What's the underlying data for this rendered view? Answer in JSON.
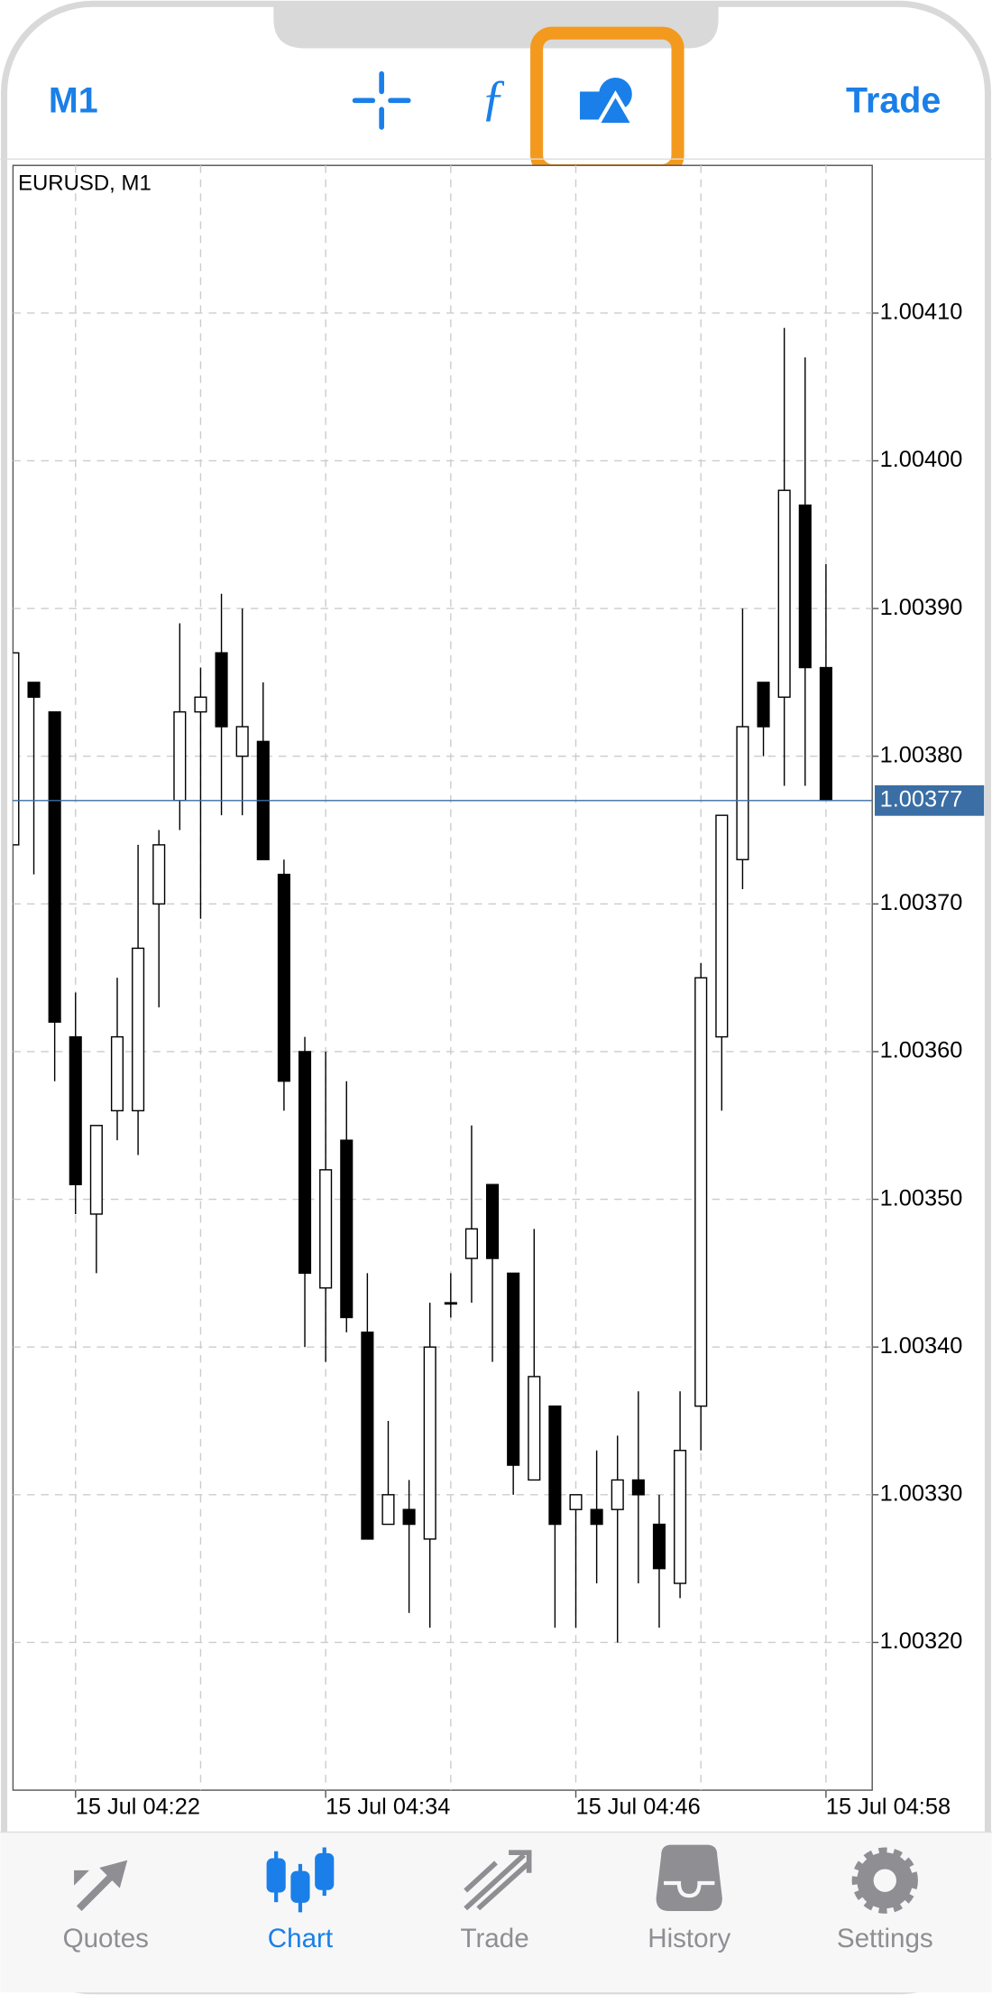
{
  "header": {
    "left": "M1",
    "right": "Trade"
  },
  "chart_data": {
    "type": "candlestick",
    "title": "EURUSD, M1",
    "x": [
      "15 Jul 04:19",
      "15 Jul 04:20",
      "15 Jul 04:21",
      "15 Jul 04:22",
      "15 Jul 04:23",
      "15 Jul 04:24",
      "15 Jul 04:25",
      "15 Jul 04:26",
      "15 Jul 04:27",
      "15 Jul 04:28",
      "15 Jul 04:29",
      "15 Jul 04:30",
      "15 Jul 04:31",
      "15 Jul 04:32",
      "15 Jul 04:33",
      "15 Jul 04:34",
      "15 Jul 04:35",
      "15 Jul 04:36",
      "15 Jul 04:37",
      "15 Jul 04:38",
      "15 Jul 04:39",
      "15 Jul 04:40",
      "15 Jul 04:41",
      "15 Jul 04:42",
      "15 Jul 04:43",
      "15 Jul 04:44",
      "15 Jul 04:45",
      "15 Jul 04:46",
      "15 Jul 04:47",
      "15 Jul 04:48",
      "15 Jul 04:49",
      "15 Jul 04:50",
      "15 Jul 04:51",
      "15 Jul 04:52",
      "15 Jul 04:53",
      "15 Jul 04:54",
      "15 Jul 04:55",
      "15 Jul 04:56",
      "15 Jul 04:57",
      "15 Jul 04:58"
    ],
    "open": [
      1.00374,
      1.00385,
      1.00383,
      1.00361,
      1.00349,
      1.00356,
      1.00356,
      1.0037,
      1.00377,
      1.00383,
      1.00387,
      1.0038,
      1.00381,
      1.00372,
      1.0036,
      1.00344,
      1.00354,
      1.00341,
      1.00328,
      1.00329,
      1.00327,
      1.00343,
      1.00346,
      1.00351,
      1.00345,
      1.00331,
      1.00336,
      1.00329,
      1.00329,
      1.00329,
      1.00331,
      1.00328,
      1.00324,
      1.00336,
      1.00361,
      1.00373,
      1.00385,
      1.00384,
      1.00397,
      1.00386
    ],
    "high": [
      1.00387,
      1.00385,
      1.00383,
      1.00364,
      1.00355,
      1.00365,
      1.00374,
      1.00375,
      1.00389,
      1.00386,
      1.00391,
      1.0039,
      1.00385,
      1.00373,
      1.00361,
      1.0036,
      1.00358,
      1.00345,
      1.00335,
      1.00331,
      1.00343,
      1.00345,
      1.00355,
      1.00351,
      1.00345,
      1.00348,
      1.00336,
      1.0033,
      1.00333,
      1.00334,
      1.00337,
      1.0033,
      1.00337,
      1.00366,
      1.00376,
      1.0039,
      1.00385,
      1.00409,
      1.00407,
      1.00393
    ],
    "low": [
      1.00374,
      1.00372,
      1.00358,
      1.00349,
      1.00345,
      1.00354,
      1.00353,
      1.00363,
      1.00375,
      1.00369,
      1.00376,
      1.00376,
      1.00373,
      1.00356,
      1.0034,
      1.00339,
      1.00341,
      1.00327,
      1.00328,
      1.00322,
      1.00321,
      1.00342,
      1.00343,
      1.00339,
      1.0033,
      1.00331,
      1.00321,
      1.00321,
      1.00324,
      1.0032,
      1.00324,
      1.00321,
      1.00323,
      1.00333,
      1.00356,
      1.00371,
      1.0038,
      1.00378,
      1.00378,
      1.00377
    ],
    "close": [
      1.00387,
      1.00384,
      1.00362,
      1.00351,
      1.00355,
      1.00361,
      1.00367,
      1.00374,
      1.00383,
      1.00384,
      1.00382,
      1.00382,
      1.00373,
      1.00358,
      1.00345,
      1.00352,
      1.00342,
      1.00327,
      1.0033,
      1.00328,
      1.0034,
      1.00343,
      1.00348,
      1.00346,
      1.00332,
      1.00338,
      1.00328,
      1.0033,
      1.00328,
      1.00331,
      1.0033,
      1.00325,
      1.00333,
      1.00365,
      1.00376,
      1.00382,
      1.00382,
      1.00398,
      1.00386,
      1.00377
    ],
    "up_color": "#ffffff",
    "down_color": "#000000",
    "ylim": [
      1.0031,
      1.0042
    ],
    "yticks": [
      {
        "value": 1.0032,
        "label": "1.00320"
      },
      {
        "value": 1.0033,
        "label": "1.00330"
      },
      {
        "value": 1.0034,
        "label": "1.00340"
      },
      {
        "value": 1.0035,
        "label": "1.00350"
      },
      {
        "value": 1.0036,
        "label": "1.00360"
      },
      {
        "value": 1.0037,
        "label": "1.00370"
      },
      {
        "value": 1.0038,
        "label": "1.00380"
      },
      {
        "value": 1.0039,
        "label": "1.00390"
      },
      {
        "value": 1.004,
        "label": "1.00400"
      },
      {
        "value": 1.0041,
        "label": "1.00410"
      }
    ],
    "xticks": [
      "15 Jul 04:22",
      "15 Jul 04:34",
      "15 Jul 04:46",
      "15 Jul 04:58"
    ],
    "last_price": 1.00377,
    "grid": true
  },
  "tabs": [
    {
      "label": "Quotes",
      "active": false
    },
    {
      "label": "Chart",
      "active": true
    },
    {
      "label": "Trade",
      "active": false
    },
    {
      "label": "History",
      "active": false
    },
    {
      "label": "Settings",
      "active": false
    }
  ]
}
